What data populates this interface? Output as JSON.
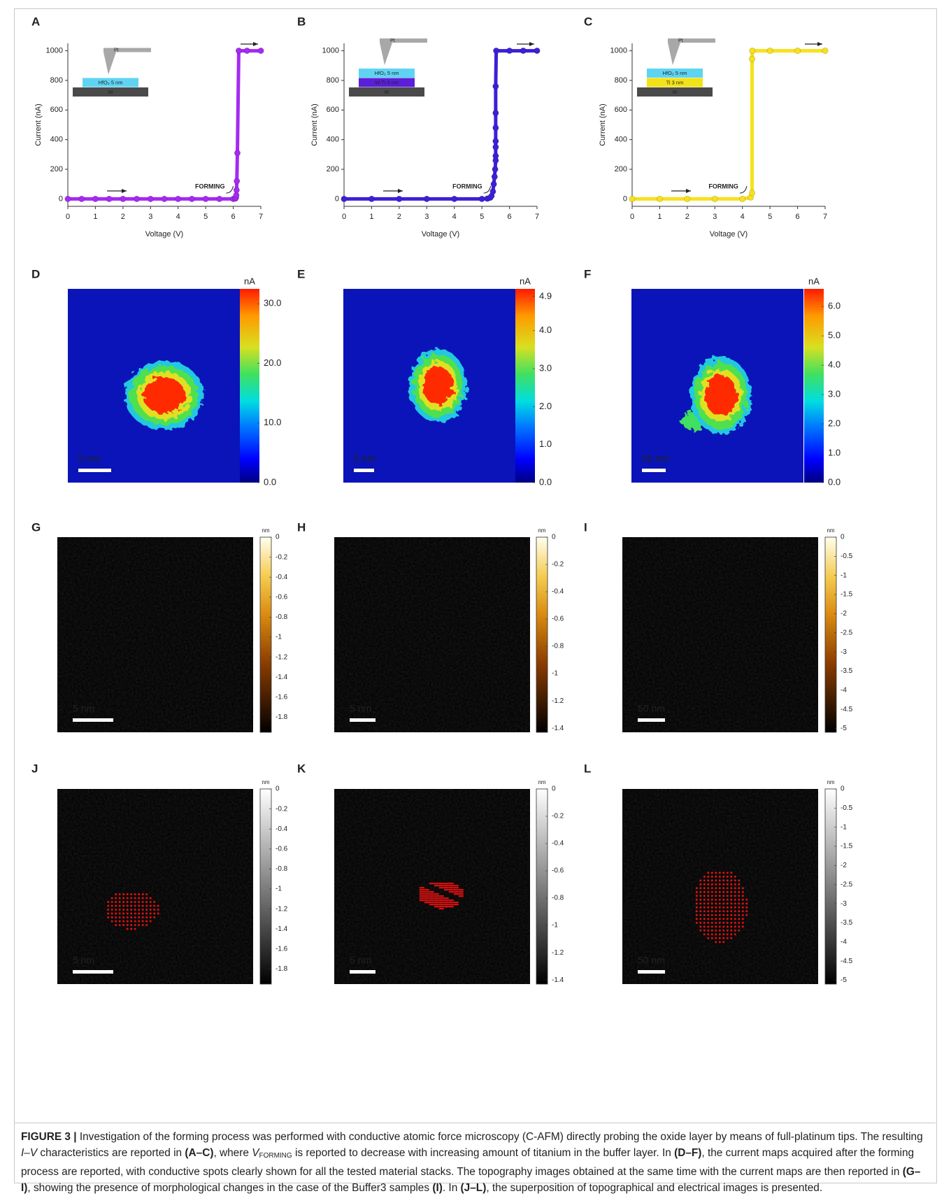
{
  "chart_data": [
    {
      "type": "line",
      "panel": "A",
      "xlabel": "Voltage (V)",
      "ylabel": "Current (nA)",
      "xlim": [
        0,
        7
      ],
      "ylim": [
        -50,
        1050
      ],
      "xticks": [
        0,
        1,
        2,
        3,
        4,
        5,
        6,
        7
      ],
      "yticks": [
        0,
        200,
        400,
        600,
        800,
        1000
      ],
      "annotation": "FORMING",
      "tip": "Pt",
      "stack": [
        {
          "label": "HfO₂ 5 nm",
          "color": "#5fd4f2"
        },
        {
          "label": "W",
          "color": "#4a4a4a"
        }
      ],
      "series": [
        {
          "color": "#a52af2",
          "x": [
            0,
            0.5,
            1,
            1.5,
            2,
            2.5,
            3,
            3.5,
            4,
            4.5,
            5,
            5.5,
            6,
            6.08,
            6.1,
            6.11,
            6.12,
            6.13,
            6.15,
            6.2,
            6.5,
            7
          ],
          "values": [
            0,
            0,
            0,
            0,
            0,
            0,
            0,
            0,
            0,
            0,
            0,
            0,
            0,
            3,
            10,
            25,
            60,
            120,
            310,
            1000,
            1000,
            1000
          ]
        }
      ]
    },
    {
      "type": "line",
      "panel": "B",
      "xlabel": "Voltage (V)",
      "ylabel": "Current (nA)",
      "xlim": [
        0,
        7
      ],
      "ylim": [
        -50,
        1050
      ],
      "xticks": [
        0,
        1,
        2,
        3,
        4,
        5,
        6,
        7
      ],
      "yticks": [
        0,
        200,
        400,
        600,
        800,
        1000
      ],
      "annotation": "FORMING",
      "tip": "Pt",
      "stack": [
        {
          "label": "HfO₂ 5 nm",
          "color": "#5fd4f2"
        },
        {
          "label": "W:Ti 3 nm",
          "color": "#5a1fd8"
        },
        {
          "label": "W",
          "color": "#4a4a4a"
        }
      ],
      "series": [
        {
          "color": "#3b20d8",
          "x": [
            0,
            1,
            2,
            3,
            4,
            5,
            5.2,
            5.3,
            5.35,
            5.4,
            5.43,
            5.46,
            5.48,
            5.5,
            5.5,
            5.5,
            5.5,
            5.5,
            5.5,
            5.5,
            5.52,
            6,
            6.5,
            7
          ],
          "values": [
            0,
            0,
            0,
            0,
            0,
            0,
            2,
            8,
            20,
            50,
            100,
            150,
            200,
            260,
            290,
            350,
            390,
            480,
            580,
            760,
            1000,
            1000,
            1000,
            1000
          ]
        }
      ]
    },
    {
      "type": "line",
      "panel": "C",
      "xlabel": "Voltage (V)",
      "ylabel": "Current (nA)",
      "xlim": [
        0,
        7
      ],
      "ylim": [
        -50,
        1050
      ],
      "xticks": [
        0,
        1,
        2,
        3,
        4,
        5,
        6,
        7
      ],
      "yticks": [
        0,
        200,
        400,
        600,
        800,
        1000
      ],
      "annotation": "FORMING",
      "tip": "Pt",
      "stack": [
        {
          "label": "HfO₂ 5 nm",
          "color": "#5fd4f2"
        },
        {
          "label": "Ti 3 nm",
          "color": "#f2e21a"
        },
        {
          "label": "W",
          "color": "#4a4a4a"
        }
      ],
      "series": [
        {
          "color": "#f6e11c",
          "x": [
            0,
            1,
            2,
            3,
            4,
            4.3,
            4.35,
            4.35,
            4.36,
            5,
            6,
            7
          ],
          "values": [
            0,
            0,
            0,
            0,
            0,
            10,
            40,
            945,
            1000,
            1000,
            1000,
            1000
          ]
        }
      ]
    }
  ],
  "maps": [
    {
      "panel": "D",
      "colormap": "jet",
      "unit": "nA",
      "clim": [
        0,
        32.5
      ],
      "cticks": [
        {
          "value": 0,
          "label": "0.0"
        },
        {
          "value": 10,
          "label": "10.0"
        },
        {
          "value": 20,
          "label": "20.0"
        },
        {
          "value": 30,
          "label": "30.0"
        }
      ],
      "scale_bar": "5 nm"
    },
    {
      "panel": "E",
      "colormap": "jet",
      "unit": "nA",
      "clim": [
        0,
        5.1
      ],
      "cticks": [
        {
          "value": 0,
          "label": "0.0"
        },
        {
          "value": 1,
          "label": "1.0"
        },
        {
          "value": 2,
          "label": "2.0"
        },
        {
          "value": 3,
          "label": "3.0"
        },
        {
          "value": 4,
          "label": "4.0"
        },
        4.9
      ],
      "scale_bar": "5 nm"
    },
    {
      "panel": "F",
      "colormap": "jet",
      "unit": "nA",
      "clim": [
        0,
        6.6
      ],
      "cticks": [
        {
          "value": 0,
          "label": "0.0"
        },
        {
          "value": 1,
          "label": "1.0"
        },
        {
          "value": 2,
          "label": "2.0"
        },
        {
          "value": 3,
          "label": "3.0"
        },
        {
          "value": 4,
          "label": "4.0"
        },
        {
          "value": 5,
          "label": "5.0"
        },
        {
          "value": 6,
          "label": "6.0"
        }
      ],
      "scale_bar": "50 nm"
    },
    {
      "panel": "G",
      "colormap": "afmhot",
      "unit": "nm",
      "clim": [
        -1.95,
        0
      ],
      "cticks": [
        0,
        -0.2,
        -0.4,
        -0.6,
        -0.8,
        -1,
        -1.2,
        -1.4,
        -1.6,
        -1.8
      ],
      "scale_bar": "5 nm"
    },
    {
      "panel": "H",
      "colormap": "afmhot",
      "unit": "nm",
      "clim": [
        -1.43,
        0
      ],
      "cticks": [
        0,
        -0.2,
        -0.4,
        -0.6,
        -0.8,
        -1,
        -1.2,
        -1.4
      ],
      "scale_bar": "5 nm"
    },
    {
      "panel": "I",
      "colormap": "afmhot",
      "unit": "nm",
      "clim": [
        -5.1,
        0
      ],
      "cticks": [
        0,
        -0.5,
        -1,
        -1.5,
        -2,
        -2.5,
        -3,
        -3.5,
        -4,
        -4.5,
        -5
      ],
      "scale_bar": "50 nm"
    },
    {
      "panel": "J",
      "colormap": "gray",
      "unit": "nm",
      "clim": [
        -1.95,
        0
      ],
      "cticks": [
        0,
        -0.2,
        -0.4,
        -0.6,
        -0.8,
        -1,
        -1.2,
        -1.4,
        -1.6,
        -1.8
      ],
      "scale_bar": "5 nm"
    },
    {
      "panel": "K",
      "colormap": "gray",
      "unit": "nm",
      "clim": [
        -1.43,
        0
      ],
      "cticks": [
        0,
        -0.2,
        -0.4,
        -0.6,
        -0.8,
        -1,
        -1.2,
        -1.4
      ],
      "scale_bar": "5 nm"
    },
    {
      "panel": "L",
      "colormap": "gray",
      "unit": "nm",
      "clim": [
        -5.1,
        0
      ],
      "cticks": [
        0,
        -0.5,
        -1,
        -1.5,
        -2,
        -2.5,
        -3,
        -3.5,
        -4,
        -4.5,
        -5
      ],
      "scale_bar": "50 nm"
    }
  ],
  "caption": {
    "runs": [
      "FIGURE 3 |",
      " Investigation of the forming process was performed with conductive atomic force microscopy (C-AFM) directly probing the oxide layer by means of full-platinum tips. The resulting ",
      "I–V",
      " characteristics are reported in ",
      "(A–C)",
      ", where ",
      "V",
      "FORMING",
      " is reported to decrease with increasing amount of titanium in the buffer layer. In ",
      "(D–F)",
      ", the current maps acquired after the forming process are reported, with conductive spots clearly shown for all the tested material stacks. The topography images obtained at the same time with the current maps are then reported in ",
      "(G–I)",
      ", showing the presence of morphological changes in the case of the Buffer3 samples ",
      "(I)",
      ". In ",
      "(J–L)",
      ", the superposition of topographical and electrical images is presented."
    ]
  }
}
